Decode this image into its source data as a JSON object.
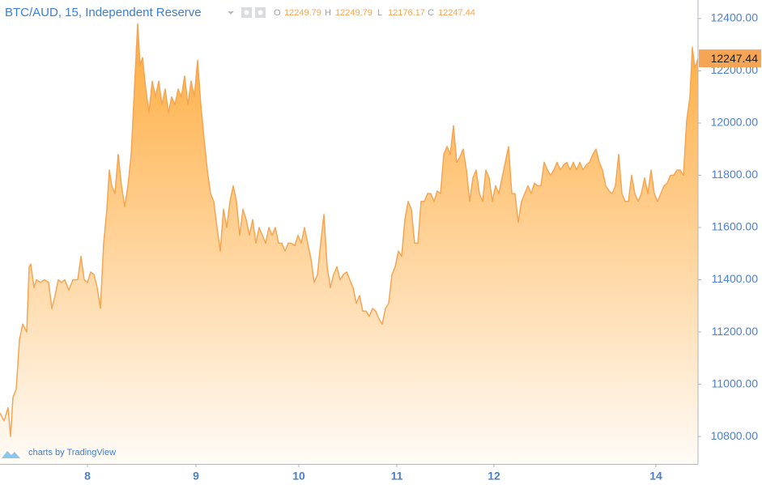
{
  "chart_data": {
    "type": "area",
    "title": "BTC/AUD, 15, Independent Reserve",
    "legend_values": [
      {
        "label": "O",
        "value": 12249.79
      },
      {
        "label": "H",
        "value": 12249.79
      },
      {
        "label": "L",
        "value": 12176.17
      },
      {
        "label": "C",
        "value": 12247.44
      }
    ],
    "last_price": 12247.44,
    "watermark": "charts by TradingView",
    "color": "#f5a553",
    "grid": false,
    "x": [
      0,
      5,
      10,
      13,
      16,
      20,
      24,
      28,
      33,
      36,
      38,
      42,
      45,
      50,
      55,
      60,
      64,
      68,
      72,
      76,
      80,
      85,
      90,
      96,
      100,
      104,
      108,
      112,
      116,
      120,
      124,
      128,
      132,
      135,
      138,
      142,
      146,
      150,
      154,
      158,
      162,
      166,
      170,
      173,
      176,
      180,
      184,
      188,
      192,
      196,
      200,
      204,
      208,
      212,
      216,
      220,
      224,
      228,
      232,
      236,
      240,
      244,
      248,
      252,
      256,
      260,
      264,
      268,
      272,
      276,
      280,
      284,
      288,
      292,
      296,
      300,
      304,
      308,
      312,
      316,
      320,
      324,
      328,
      332,
      336,
      340,
      344,
      348,
      352,
      356,
      360,
      364,
      368,
      372,
      376,
      380,
      384,
      388,
      392,
      396,
      400,
      404,
      408,
      412,
      416,
      420,
      424,
      428,
      432,
      436,
      440,
      444,
      448,
      452,
      456,
      460,
      464,
      468,
      472,
      476,
      480,
      484,
      488,
      492,
      496,
      500,
      504,
      508,
      512,
      516,
      520,
      524,
      528,
      532,
      536,
      540,
      544,
      548,
      552,
      556,
      560,
      564,
      568,
      572,
      576,
      580,
      584,
      588,
      592,
      596,
      600,
      604,
      608,
      612,
      616,
      620,
      624,
      628,
      632,
      636,
      640,
      644,
      648,
      652,
      656,
      660,
      664,
      668,
      672,
      676,
      680,
      684,
      688,
      692,
      696,
      700,
      704,
      708,
      712,
      716,
      720,
      724,
      728,
      732,
      736,
      740,
      744,
      748,
      752,
      756,
      760,
      764,
      768,
      772,
      776,
      780,
      784,
      788,
      792,
      796,
      800,
      804,
      808,
      812,
      816,
      820,
      824,
      828,
      832,
      836,
      840,
      844,
      848,
      852,
      855,
      858,
      862
    ],
    "values": [
      10890,
      10860,
      10910,
      10800,
      10950,
      10980,
      11170,
      11230,
      11200,
      11450,
      11460,
      11370,
      11400,
      11390,
      11400,
      11390,
      11290,
      11340,
      11400,
      11390,
      11400,
      11360,
      11400,
      11400,
      11490,
      11400,
      11390,
      11430,
      11420,
      11370,
      11290,
      11540,
      11670,
      11820,
      11760,
      11730,
      11880,
      11760,
      11680,
      11760,
      11880,
      12130,
      12380,
      12220,
      12250,
      12130,
      12040,
      12160,
      12100,
      12160,
      12070,
      12130,
      12040,
      12100,
      12070,
      12130,
      12100,
      12180,
      12070,
      12160,
      12100,
      12240,
      12070,
      11940,
      11820,
      11730,
      11700,
      11600,
      11510,
      11670,
      11600,
      11700,
      11760,
      11700,
      11570,
      11670,
      11630,
      11570,
      11630,
      11540,
      11600,
      11570,
      11540,
      11600,
      11570,
      11600,
      11540,
      11540,
      11510,
      11540,
      11540,
      11530,
      11570,
      11540,
      11600,
      11540,
      11480,
      11390,
      11420,
      11540,
      11650,
      11450,
      11370,
      11420,
      11450,
      11400,
      11420,
      11430,
      11400,
      11370,
      11310,
      11340,
      11280,
      11280,
      11260,
      11290,
      11280,
      11250,
      11230,
      11290,
      11310,
      11420,
      11450,
      11510,
      11490,
      11630,
      11700,
      11670,
      11540,
      11540,
      11700,
      11700,
      11730,
      11730,
      11700,
      11740,
      11730,
      11880,
      11910,
      11880,
      11990,
      11850,
      11870,
      11900,
      11820,
      11700,
      11790,
      11820,
      11730,
      11700,
      11820,
      11790,
      11700,
      11760,
      11730,
      11790,
      11850,
      11910,
      11730,
      11730,
      11620,
      11700,
      11730,
      11760,
      11730,
      11770,
      11760,
      11760,
      11850,
      11820,
      11800,
      11820,
      11850,
      11820,
      11840,
      11850,
      11820,
      11850,
      11820,
      11850,
      11820,
      11840,
      11850,
      11880,
      11900,
      11850,
      11820,
      11760,
      11740,
      11730,
      11760,
      11880,
      11730,
      11700,
      11700,
      11800,
      11730,
      11700,
      11730,
      11790,
      11730,
      11820,
      11730,
      11700,
      11730,
      11760,
      11770,
      11800,
      11800,
      11820,
      11820,
      11800,
      12010,
      12100,
      12290,
      12210,
      12247.44
    ],
    "xlim": [
      0,
      862
    ],
    "xticks": [
      {
        "value": 108,
        "label": "8"
      },
      {
        "value": 242,
        "label": "9"
      },
      {
        "value": 369,
        "label": "10"
      },
      {
        "value": 490,
        "label": "11"
      },
      {
        "value": 610,
        "label": "12"
      },
      {
        "value": 810,
        "label": "14"
      }
    ],
    "ylim": [
      10695,
      12471
    ],
    "yticks": [
      {
        "value": 10800,
        "label": "10800.00"
      },
      {
        "value": 11000,
        "label": "11000.00"
      },
      {
        "value": 11200,
        "label": "11200.00"
      },
      {
        "value": 11400,
        "label": "11400.00"
      },
      {
        "value": 11600,
        "label": "11600.00"
      },
      {
        "value": 11800,
        "label": "11800.00"
      },
      {
        "value": 12000,
        "label": "12000.00"
      },
      {
        "value": 12200,
        "label": "12200.00"
      },
      {
        "value": 12400,
        "label": "12400.00"
      }
    ]
  }
}
